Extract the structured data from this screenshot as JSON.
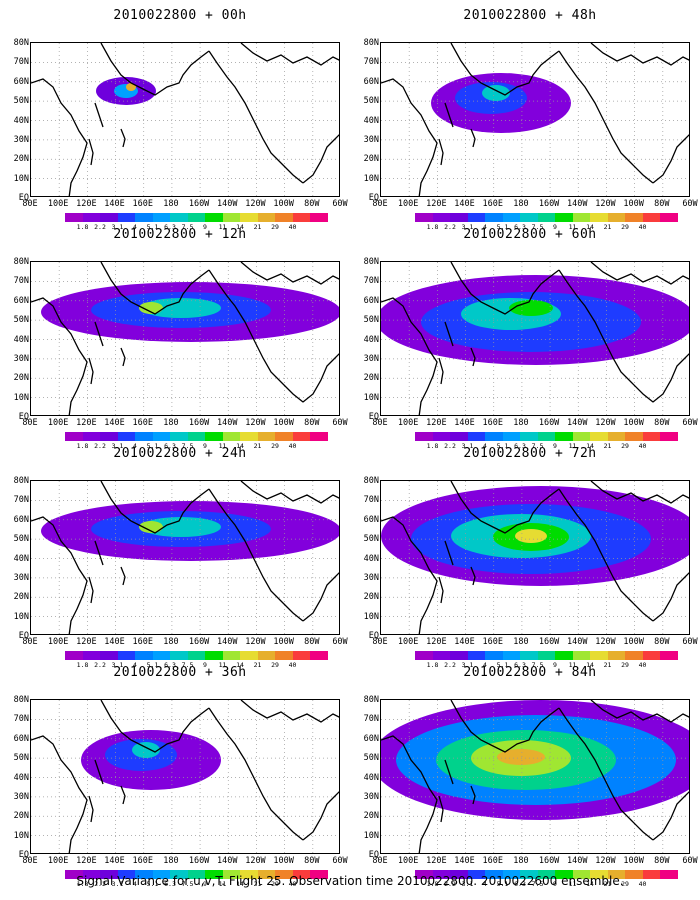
{
  "panels": [
    {
      "title": "2010022800 + 00h",
      "level": 1
    },
    {
      "title": "2010022800 + 48h",
      "level": 3
    },
    {
      "title": "2010022800 + 12h",
      "level": 2
    },
    {
      "title": "2010022800 + 60h",
      "level": 4
    },
    {
      "title": "2010022800 + 24h",
      "level": 2
    },
    {
      "title": "2010022800 + 72h",
      "level": 5
    },
    {
      "title": "2010022800 + 36h",
      "level": 3
    },
    {
      "title": "2010022800 + 84h",
      "level": 6
    }
  ],
  "lat_labels": [
    "80N",
    "70N",
    "60N",
    "50N",
    "40N",
    "30N",
    "20N",
    "10N",
    "EQ"
  ],
  "lon_labels": [
    "80E",
    "100E",
    "120E",
    "140E",
    "160E",
    "180",
    "160W",
    "140W",
    "120W",
    "100W",
    "80W",
    "60W"
  ],
  "colorbar": {
    "labels": [
      "1.8",
      "2.2",
      "3.1",
      "4",
      "5.1",
      "6.3",
      "7.5",
      "9",
      "11",
      "14",
      "21",
      "29",
      "40"
    ],
    "colors": [
      "#a000c8",
      "#8200dc",
      "#6e00dc",
      "#1e3cff",
      "#0082ff",
      "#00a0ff",
      "#00c8c8",
      "#00d28c",
      "#00dc00",
      "#a0e632",
      "#e6dc32",
      "#e6af2d",
      "#f08228",
      "#fa3c3c",
      "#f00082"
    ]
  },
  "caption": "Signal Variance for u,v,T. Flight 25. Observation time 2010022800. 2010022600 ensemble."
}
